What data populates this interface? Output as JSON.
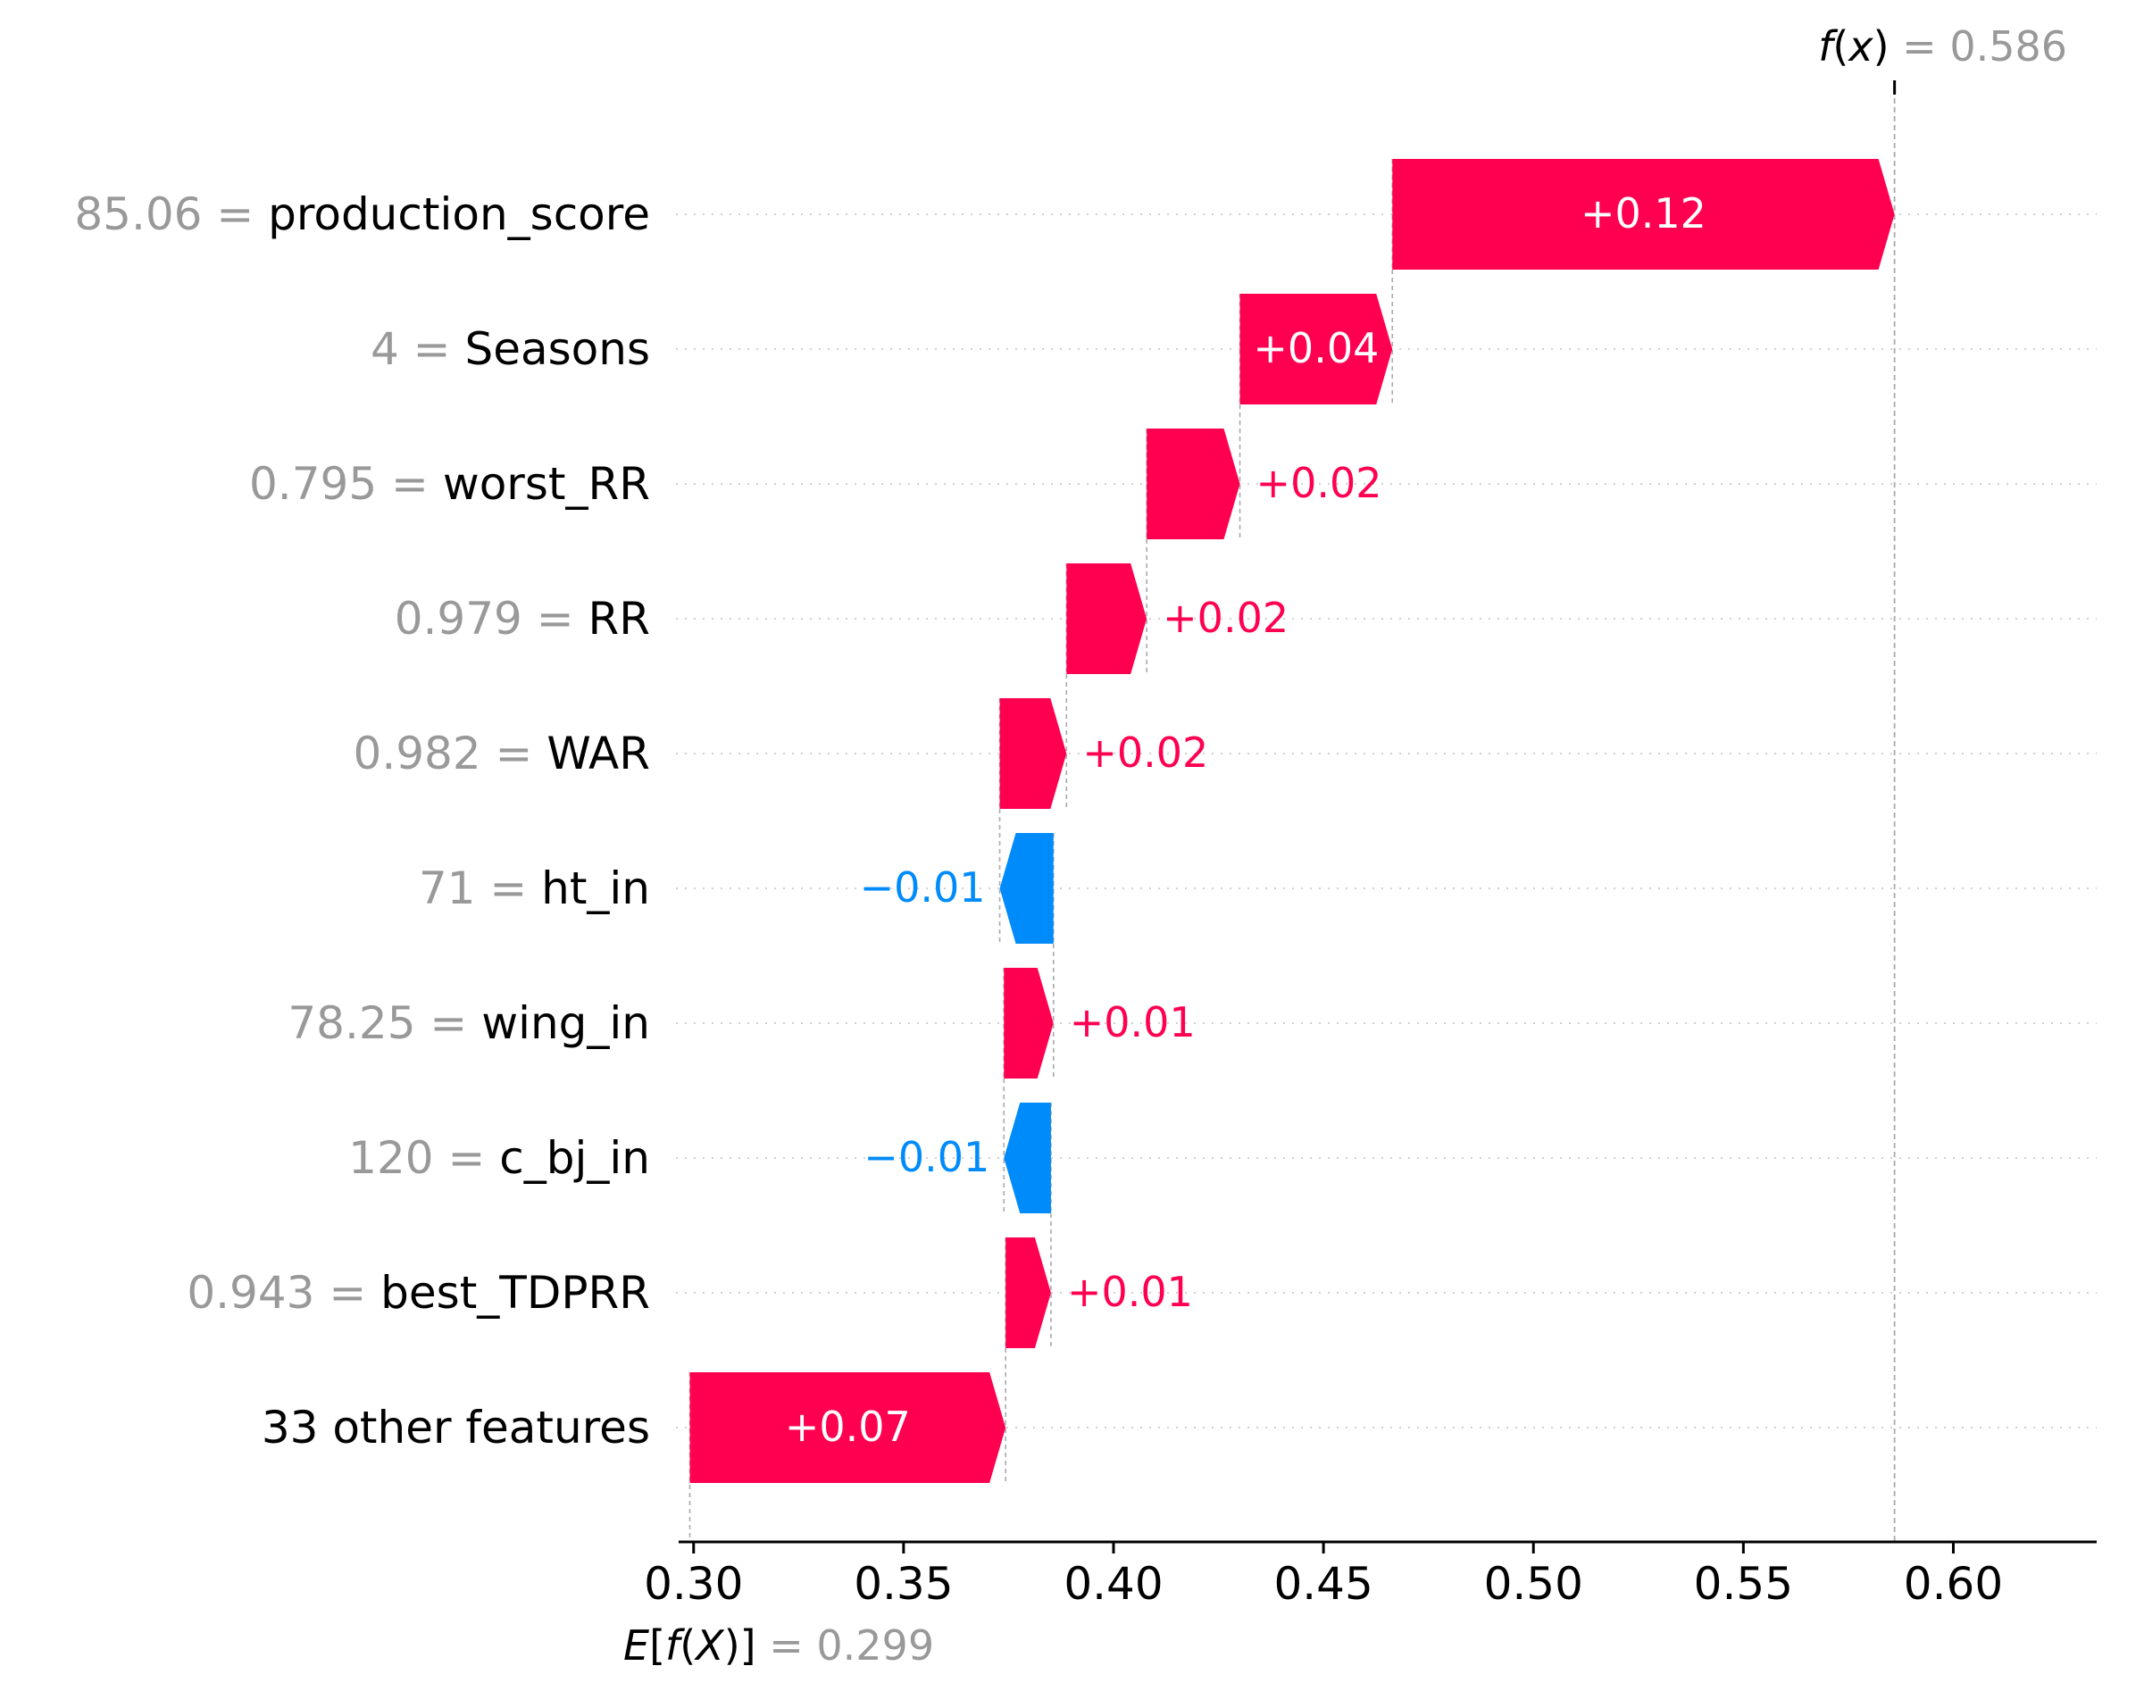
{
  "chart_data": {
    "type": "waterfall",
    "fx": {
      "label": "f(x)",
      "eq": " = ",
      "value": "0.586",
      "numeric": 0.586
    },
    "base": {
      "label": "E[f(X)]",
      "eq": " = ",
      "value": "0.299",
      "numeric": 0.299
    },
    "xlim": [
      0.2975,
      0.6335
    ],
    "xticks": [
      0.3,
      0.35,
      0.4,
      0.45,
      0.5,
      0.55,
      0.6
    ],
    "xtick_labels": [
      "0.30",
      "0.35",
      "0.40",
      "0.45",
      "0.50",
      "0.55",
      "0.60"
    ],
    "grid": "dotted horizontal per row",
    "colors": {
      "positive": "#ff0051",
      "negative": "#008bfb",
      "value_gray": "#999999",
      "text": "#000000",
      "axis": "#000000",
      "guide": "#aaaaaa"
    },
    "rows": [
      {
        "value": "85.06",
        "feature": "production_score",
        "contribution": 0.1196,
        "label": "+0.12",
        "start": 0.4664,
        "end": 0.586
      },
      {
        "value": "4",
        "feature": "Seasons",
        "contribution": 0.0363,
        "label": "+0.04",
        "start": 0.4301,
        "end": 0.4664
      },
      {
        "value": "0.795",
        "feature": "worst_RR",
        "contribution": 0.0222,
        "label": "+0.02",
        "start": 0.4079,
        "end": 0.4301
      },
      {
        "value": "0.979",
        "feature": "RR",
        "contribution": 0.0191,
        "label": "+0.02",
        "start": 0.3888,
        "end": 0.4079
      },
      {
        "value": "0.982",
        "feature": "WAR",
        "contribution": 0.0159,
        "label": "+0.02",
        "start": 0.3729,
        "end": 0.3888
      },
      {
        "value": "71",
        "feature": "ht_in",
        "contribution": -0.0128,
        "label": "−0.01",
        "start": 0.3857,
        "end": 0.3729
      },
      {
        "value": "78.25",
        "feature": "wing_in",
        "contribution": 0.0118,
        "label": "+0.01",
        "start": 0.3739,
        "end": 0.3857
      },
      {
        "value": "120",
        "feature": "c_bj_in",
        "contribution": -0.0112,
        "label": "−0.01",
        "start": 0.3851,
        "end": 0.3739
      },
      {
        "value": "0.943",
        "feature": "best_TDPRR",
        "contribution": 0.0108,
        "label": "+0.01",
        "start": 0.3743,
        "end": 0.3851
      },
      {
        "value": "",
        "feature": "33 other features",
        "contribution": 0.0752,
        "label": "+0.07",
        "start": 0.2991,
        "end": 0.3743
      }
    ]
  }
}
